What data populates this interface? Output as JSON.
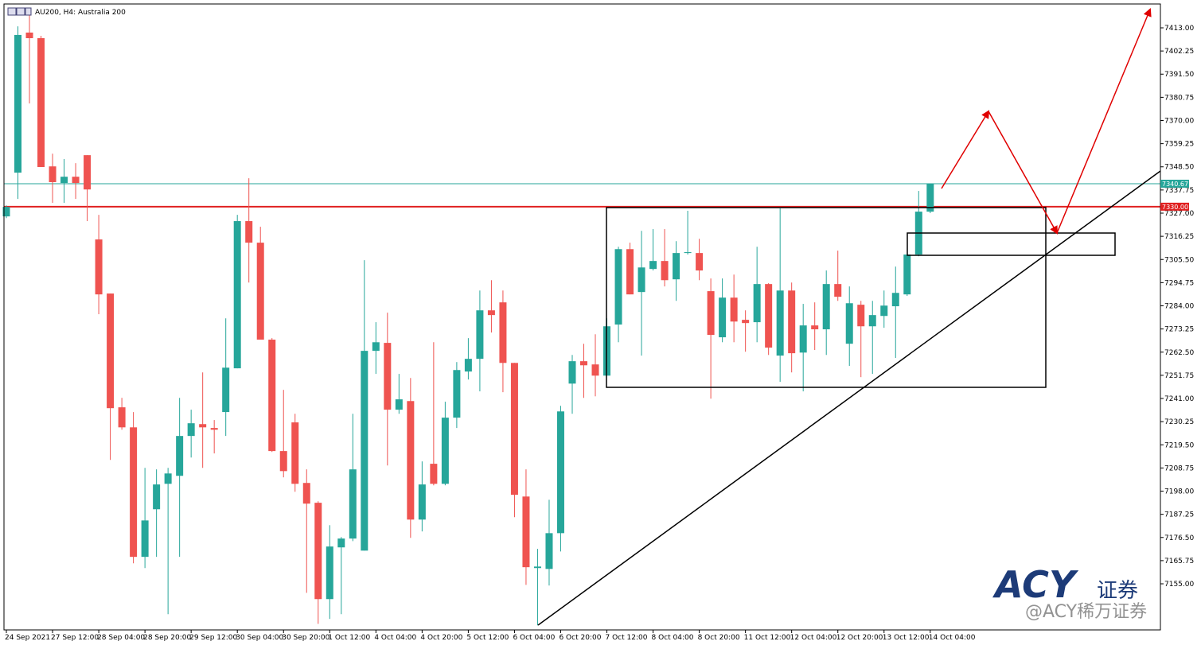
{
  "chart_data": {
    "type": "candlestick",
    "title": "AU200, H4:  Australia 200",
    "categories": [
      "24 Sep 2021",
      null,
      null,
      null,
      "27 Sep 12:00",
      null,
      null,
      null,
      "28 Sep 04:00",
      null,
      null,
      null,
      "28 Sep 20:00",
      null,
      null,
      null,
      "29 Sep 12:00",
      null,
      null,
      null,
      "30 Sep 04:00",
      null,
      null,
      null,
      "30 Sep 20:00",
      null,
      null,
      null,
      "1 Oct 12:00",
      null,
      null,
      null,
      "4 Oct 04:00",
      null,
      null,
      null,
      "4 Oct 20:00",
      null,
      null,
      null,
      "5 Oct 12:00",
      null,
      null,
      null,
      "6 Oct 04:00",
      null,
      null,
      null,
      "6 Oct 20:00",
      null,
      null,
      null,
      "7 Oct 12:00",
      null,
      null,
      null,
      "8 Oct 04:00",
      null,
      null,
      null,
      "8 Oct 20:00",
      null,
      null,
      null,
      "11 Oct 12:00",
      null,
      null,
      null,
      "12 Oct 04:00",
      null,
      null,
      null,
      "12 Oct 20:00",
      null,
      null,
      null,
      "13 Oct 12:00",
      null,
      null,
      null,
      "14 Oct 04:00"
    ],
    "open": [
      7325.5,
      7345.8,
      7410.8,
      7408.2,
      7348.7,
      7341.0,
      7343.9,
      7353.9,
      7314.8,
      7289.7,
      7236.9,
      7227.6,
      7167.5,
      7189.6,
      7201.4,
      7205.1,
      7223.6,
      7229.1,
      7227.3,
      7234.7,
      7255.0,
      7323.3,
      7313.3,
      7268.3,
      7216.6,
      7229.9,
      7201.8,
      7192.6,
      7147.9,
      7171.9,
      7176.0,
      7170.4,
      7263.1,
      7266.8,
      7235.8,
      7239.8,
      7184.8,
      7210.7,
      7201.4,
      7232.1,
      7253.5,
      7259.4,
      7281.9,
      7285.6,
      7257.5,
      7195.5,
      7162.3,
      7161.9,
      7178.5,
      7247.9,
      7258.3,
      7256.8,
      7251.6,
      7275.3,
      7310.3,
      7290.4,
      7301.1,
      7304.8,
      7296.3,
      7308.5,
      7308.5,
      7290.8,
      7269.4,
      7287.8,
      7277.5,
      7276.4,
      7294.1,
      7260.9,
      7291.1,
      7262.3,
      7274.9,
      7273.1,
      7294.1,
      7266.4,
      7284.5,
      7274.5,
      7279.3,
      7283.8,
      7289.3,
      7307.8,
      7327.7
    ],
    "high": [
      7330.6,
      7413.7,
      7420.4,
      7409.3,
      7354.6,
      7352.1,
      7350.2,
      7353.9,
      7326.2,
      7289.7,
      7241.3,
      7234.7,
      7208.8,
      7208.1,
      7208.8,
      7241.3,
      7235.8,
      7253.1,
      7231.0,
      7278.2,
      7326.2,
      7343.2,
      7320.7,
      7269.0,
      7245.0,
      7233.9,
      7208.1,
      7193.3,
      7182.2,
      7176.7,
      7233.9,
      7305.2,
      7276.4,
      7280.8,
      7252.4,
      7250.5,
      7211.8,
      7267.1,
      7239.5,
      7257.9,
      7269.0,
      7291.1,
      7295.9,
      7291.1,
      7257.5,
      7208.1,
      7171.2,
      7194.0,
      7237.6,
      7261.2,
      7266.4,
      7270.8,
      7278.2,
      7311.4,
      7313.3,
      7318.8,
      7319.6,
      7319.6,
      7314.0,
      7328.1,
      7315.1,
      7296.7,
      7296.7,
      7298.5,
      7281.9,
      7311.4,
      7294.5,
      7329.2,
      7294.8,
      7284.9,
      7285.6,
      7300.4,
      7309.6,
      7293.0,
      7286.3,
      7286.3,
      7291.1,
      7302.2,
      7307.8,
      7337.3,
      7340.6
    ],
    "low": [
      7324.7,
      7333.6,
      7377.9,
      7348.4,
      7331.8,
      7331.8,
      7333.6,
      7323.3,
      7280.1,
      7212.5,
      7226.5,
      7164.5,
      7162.3,
      7167.5,
      7140.9,
      7167.5,
      7213.6,
      7208.8,
      7215.5,
      7223.6,
      7255.0,
      7294.8,
      7268.3,
      7216.2,
      7204.4,
      7197.7,
      7150.8,
      7136.4,
      7138.7,
      7140.9,
      7174.8,
      7170.4,
      7252.4,
      7209.9,
      7233.9,
      7176.3,
      7179.3,
      7200.7,
      7200.7,
      7227.3,
      7249.8,
      7244.3,
      7271.6,
      7243.9,
      7185.9,
      7154.5,
      7135.7,
      7154.2,
      7170.0,
      7233.9,
      7241.3,
      7242.0,
      7251.6,
      7267.1,
      7289.3,
      7260.9,
      7300.4,
      7293.0,
      7286.3,
      7307.8,
      7295.9,
      7240.9,
      7267.1,
      7267.1,
      7262.7,
      7267.1,
      7261.2,
      7248.7,
      7253.1,
      7244.3,
      7263.5,
      7261.2,
      7286.3,
      7256.1,
      7250.9,
      7252.4,
      7273.8,
      7259.8,
      7288.6,
      7307.0,
      7327.0
    ],
    "close": [
      7329.9,
      7409.7,
      7408.2,
      7348.4,
      7341.4,
      7343.9,
      7341.0,
      7338.0,
      7289.3,
      7236.5,
      7227.6,
      7167.5,
      7184.4,
      7201.1,
      7206.2,
      7223.6,
      7229.5,
      7227.6,
      7226.5,
      7255.3,
      7323.3,
      7313.3,
      7268.3,
      7216.6,
      7207.3,
      7201.4,
      7192.2,
      7147.9,
      7172.3,
      7176.0,
      7208.1,
      7263.1,
      7267.1,
      7235.8,
      7240.6,
      7184.8,
      7201.1,
      7201.4,
      7232.1,
      7254.2,
      7259.4,
      7281.9,
      7279.7,
      7257.5,
      7196.3,
      7162.7,
      7163.0,
      7178.5,
      7235.0,
      7258.3,
      7256.4,
      7251.6,
      7274.5,
      7310.3,
      7289.3,
      7301.8,
      7304.8,
      7295.9,
      7308.5,
      7308.9,
      7300.4,
      7270.5,
      7287.8,
      7276.7,
      7276.0,
      7294.1,
      7264.6,
      7291.1,
      7262.0,
      7274.9,
      7273.1,
      7294.1,
      7288.2,
      7285.2,
      7274.5,
      7279.7,
      7284.1,
      7290.0,
      7307.8,
      7327.7,
      7340.6
    ],
    "up_color": "#26a69a",
    "down_color": "#ef5350",
    "ylim": [
      7133.6,
      7424.07
    ],
    "yticks": [
      {
        "value": 7413,
        "label": "7413.00"
      },
      {
        "value": 7402.25,
        "label": "7402.25"
      },
      {
        "value": 7391.5,
        "label": "7391.50"
      },
      {
        "value": 7380.75,
        "label": "7380.75"
      },
      {
        "value": 7370,
        "label": "7370.00"
      },
      {
        "value": 7359.25,
        "label": "7359.25"
      },
      {
        "value": 7348.5,
        "label": "7348.50"
      },
      {
        "value": 7337.75,
        "label": "7337.75"
      },
      {
        "value": 7327,
        "label": "7327.00"
      },
      {
        "value": 7316.25,
        "label": "7316.25"
      },
      {
        "value": 7305.5,
        "label": "7305.50"
      },
      {
        "value": 7294.75,
        "label": "7294.75"
      },
      {
        "value": 7284,
        "label": "7284.00"
      },
      {
        "value": 7273.25,
        "label": "7273.25"
      },
      {
        "value": 7262.5,
        "label": "7262.50"
      },
      {
        "value": 7251.75,
        "label": "7251.75"
      },
      {
        "value": 7241,
        "label": "7241.00"
      },
      {
        "value": 7230.25,
        "label": "7230.25"
      },
      {
        "value": 7219.5,
        "label": "7219.50"
      },
      {
        "value": 7208.75,
        "label": "7208.75"
      },
      {
        "value": 7198,
        "label": "7198.00"
      },
      {
        "value": 7187.25,
        "label": "7187.25"
      },
      {
        "value": 7176.5,
        "label": "7176.50"
      },
      {
        "value": 7165.75,
        "label": "7165.75"
      },
      {
        "value": 7155,
        "label": "7155.00"
      }
    ],
    "hlines": [
      {
        "value": 7340.67,
        "label": "7340.67",
        "color": "#26a69a",
        "width": 1
      },
      {
        "value": 7330,
        "label": "7330.00",
        "color": "#e02020",
        "width": 2
      }
    ],
    "grid": false
  },
  "watermark": {
    "logo": "ACY",
    "logo_sub": "证券",
    "handle": "@ACY稀万证券"
  }
}
